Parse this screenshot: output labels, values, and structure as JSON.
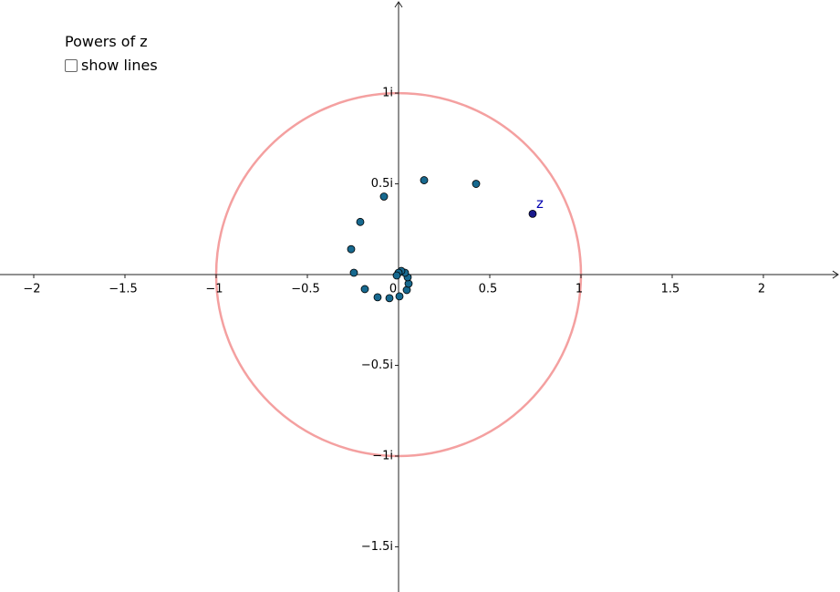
{
  "chart_data": {
    "type": "scatter",
    "title": "Powers of z",
    "checkbox_label": "show lines",
    "checked": false,
    "xlim": [
      -2.185,
      2.42
    ],
    "ylim": [
      -1.749,
      1.513
    ],
    "xticks": [
      {
        "value": -2,
        "label": "−2"
      },
      {
        "value": -1.5,
        "label": "−1.5"
      },
      {
        "value": -1,
        "label": "−1"
      },
      {
        "value": -0.5,
        "label": "−0.5"
      },
      0,
      0.5,
      1,
      1.5,
      2
    ],
    "yticks": [
      {
        "value": 1,
        "label": "1i"
      },
      {
        "value": 0.5,
        "label": "0.5i"
      },
      {
        "value": -0.5,
        "label": "−0.5i"
      },
      {
        "value": -1,
        "label": "−1i"
      },
      {
        "value": -1.5,
        "label": "−1.5i"
      }
    ],
    "circle": {
      "radius": 1,
      "color": "#f4a0a0"
    },
    "series": [
      {
        "name": "z",
        "color": "#1a1a8c",
        "x": [
          0.735
        ],
        "values": [
          0.335
        ]
      },
      {
        "color": "#17698f",
        "x": [
          0.425,
          0.14,
          -0.08,
          -0.21,
          -0.26,
          -0.245,
          -0.185,
          -0.115,
          -0.05,
          0.005,
          0.045,
          0.055,
          0.05,
          0.035,
          0.015,
          0,
          -0.01
        ],
        "values": [
          0.5,
          0.52,
          0.43,
          0.29,
          0.14,
          0.01,
          -0.08,
          -0.125,
          -0.13,
          -0.12,
          -0.085,
          -0.05,
          -0.015,
          0.01,
          0.02,
          0.01,
          -0.005
        ]
      }
    ]
  }
}
